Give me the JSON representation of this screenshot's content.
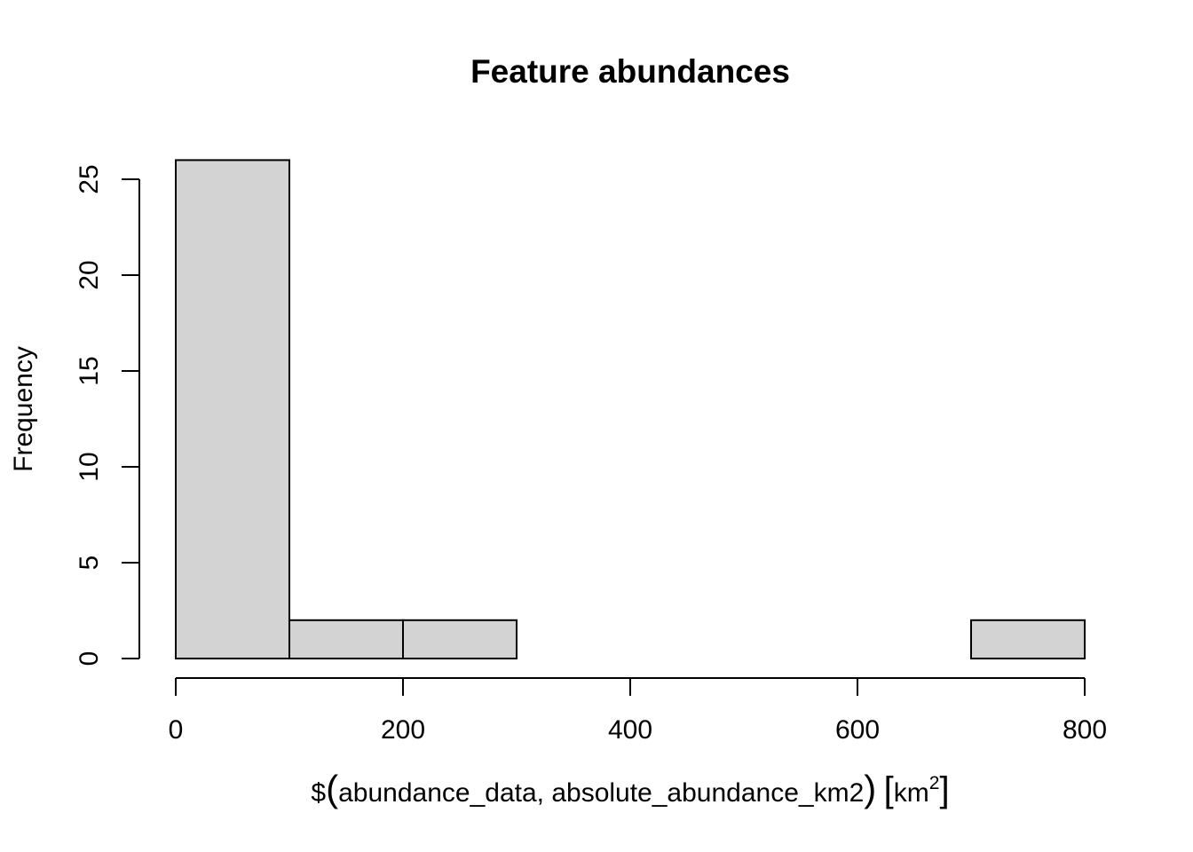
{
  "chart_data": {
    "type": "bar",
    "title": "Feature abundances",
    "xlabel": {
      "prefix": "$",
      "open_paren": "(",
      "args": "abundance_data, absolute_abundance_km2",
      "close_paren": ")",
      "open_bracket": "[",
      "unit": "km",
      "unit_power": "2",
      "close_bracket": "]"
    },
    "ylabel": "Frequency",
    "bins": [
      {
        "start": 0,
        "end": 100,
        "count": 26
      },
      {
        "start": 100,
        "end": 200,
        "count": 2
      },
      {
        "start": 200,
        "end": 300,
        "count": 2
      },
      {
        "start": 300,
        "end": 400,
        "count": 0
      },
      {
        "start": 400,
        "end": 500,
        "count": 0
      },
      {
        "start": 500,
        "end": 600,
        "count": 0
      },
      {
        "start": 600,
        "end": 700,
        "count": 0
      },
      {
        "start": 700,
        "end": 800,
        "count": 2
      }
    ],
    "x_ticks": [
      0,
      200,
      400,
      600,
      800
    ],
    "y_ticks": [
      0,
      5,
      10,
      15,
      20,
      25
    ],
    "xlim": [
      0,
      800
    ],
    "ylim": [
      0,
      26
    ],
    "grid": false,
    "bar_color": "#d3d3d3",
    "edge_color": "#000000"
  }
}
